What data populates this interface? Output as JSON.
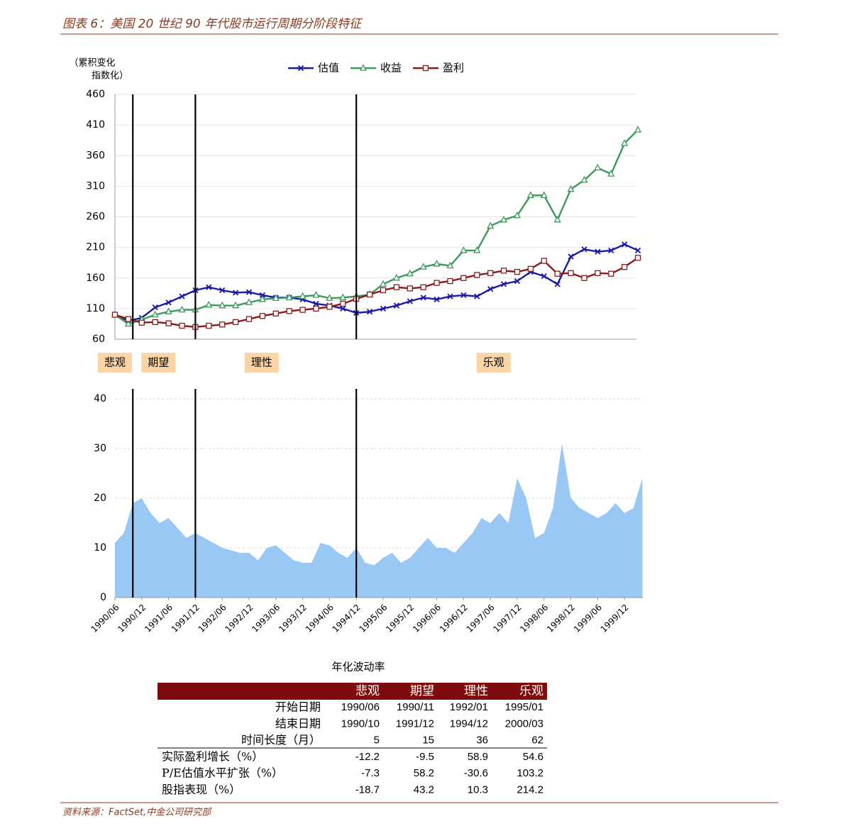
{
  "header": {
    "title": "图表 6：美国 20 世纪 90 年代股市运行周期分阶段特征"
  },
  "chart_data": [
    {
      "type": "line",
      "ylabel": [
        "（累积变化",
        "指数化）"
      ],
      "x": [
        "1990/06",
        "1990/09",
        "1990/12",
        "1991/03",
        "1991/06",
        "1991/09",
        "1991/12",
        "1992/03",
        "1992/06",
        "1992/09",
        "1992/12",
        "1993/03",
        "1993/06",
        "1993/09",
        "1993/12",
        "1994/03",
        "1994/06",
        "1994/09",
        "1994/12",
        "1995/03",
        "1995/06",
        "1995/09",
        "1995/12",
        "1996/03",
        "1996/06",
        "1996/09",
        "1996/12",
        "1997/03",
        "1997/06",
        "1997/09",
        "1997/12",
        "1998/03",
        "1998/06",
        "1998/09",
        "1998/12",
        "1999/03",
        "1999/06",
        "1999/09",
        "1999/12",
        "2000/03"
      ],
      "series": [
        {
          "name": "估值",
          "color": "#1a1aa8",
          "marker": "x",
          "values": [
            100,
            90,
            95,
            112,
            120,
            130,
            140,
            145,
            140,
            136,
            137,
            132,
            128,
            128,
            125,
            118,
            115,
            110,
            103,
            105,
            110,
            115,
            122,
            128,
            125,
            130,
            132,
            130,
            142,
            150,
            155,
            170,
            163,
            150,
            195,
            207,
            203,
            205,
            215,
            205
          ]
        },
        {
          "name": "收益",
          "color": "#3a9a5a",
          "marker": "triangle",
          "values": [
            100,
            85,
            92,
            100,
            105,
            108,
            108,
            116,
            115,
            115,
            120,
            125,
            127,
            128,
            130,
            132,
            127,
            128,
            130,
            133,
            150,
            160,
            167,
            178,
            183,
            180,
            205,
            205,
            245,
            255,
            262,
            295,
            295,
            255,
            305,
            320,
            340,
            330,
            380,
            402
          ]
        },
        {
          "name": "盈利",
          "color": "#8b1a1a",
          "marker": "square",
          "values": [
            100,
            93,
            87,
            88,
            86,
            82,
            80,
            82,
            84,
            88,
            93,
            98,
            102,
            106,
            108,
            110,
            113,
            118,
            126,
            133,
            140,
            145,
            143,
            145,
            152,
            155,
            160,
            165,
            168,
            172,
            170,
            175,
            188,
            167,
            168,
            160,
            168,
            167,
            178,
            193
          ]
        }
      ],
      "ylim": [
        60,
        460
      ],
      "yticks": [
        60,
        110,
        160,
        210,
        260,
        310,
        360,
        410,
        460
      ],
      "grid": true,
      "vlines": [
        "1990/10",
        "1991/12",
        "1994/12"
      ],
      "phases": [
        "悲观",
        "期望",
        "理性",
        "乐观"
      ]
    },
    {
      "type": "area",
      "xlabel": "年化波动率",
      "color": "#99c8f5",
      "x": [
        "1990/06",
        "1990/08",
        "1990/10",
        "1990/12",
        "1991/02",
        "1991/04",
        "1991/06",
        "1991/08",
        "1991/10",
        "1991/12",
        "1992/02",
        "1992/04",
        "1992/06",
        "1992/08",
        "1992/10",
        "1992/12",
        "1993/02",
        "1993/04",
        "1993/06",
        "1993/08",
        "1993/10",
        "1993/12",
        "1994/02",
        "1994/04",
        "1994/06",
        "1994/08",
        "1994/10",
        "1994/12",
        "1995/02",
        "1995/04",
        "1995/06",
        "1995/08",
        "1995/10",
        "1995/12",
        "1996/02",
        "1996/04",
        "1996/06",
        "1996/08",
        "1996/10",
        "1996/12",
        "1997/02",
        "1997/04",
        "1997/06",
        "1997/08",
        "1997/10",
        "1997/12",
        "1998/02",
        "1998/04",
        "1998/06",
        "1998/08",
        "1998/10",
        "1998/12",
        "1999/02",
        "1999/04",
        "1999/06",
        "1999/08",
        "1999/10",
        "1999/12",
        "2000/02",
        "2000/04"
      ],
      "values": [
        11,
        13,
        19,
        20,
        17,
        15,
        16,
        14,
        12,
        13,
        12,
        11,
        10,
        9.5,
        9,
        9,
        7.5,
        10,
        10.5,
        9,
        7.5,
        7,
        7,
        11,
        10.5,
        9,
        8,
        10,
        7,
        6.5,
        8,
        9,
        7,
        8,
        10,
        12,
        10,
        10,
        9,
        11,
        13,
        16,
        15,
        17,
        15,
        24,
        20,
        12,
        13,
        18,
        31,
        20,
        18,
        17,
        16,
        17,
        19,
        17,
        18,
        24
      ],
      "ylim": [
        0,
        40
      ],
      "yticks": [
        0,
        10,
        20,
        30,
        40
      ],
      "grid": true,
      "xticks": [
        "1990/06",
        "1990/12",
        "1991/06",
        "1991/12",
        "1992/06",
        "1992/12",
        "1993/06",
        "1993/12",
        "1994/06",
        "1994/12",
        "1995/06",
        "1995/12",
        "1996/06",
        "1996/12",
        "1997/06",
        "1997/12",
        "1998/06",
        "1998/12",
        "1999/06",
        "1999/12"
      ],
      "vlines": [
        "1990/10",
        "1991/12",
        "1994/12"
      ]
    }
  ],
  "table": {
    "columns": [
      "悲观",
      "期望",
      "理性",
      "乐观"
    ],
    "rows": [
      {
        "label": "开始日期",
        "values": [
          "1990/06",
          "1990/11",
          "1992/01",
          "1995/01"
        ]
      },
      {
        "label": "结束日期",
        "values": [
          "1990/10",
          "1991/12",
          "1994/12",
          "2000/03"
        ]
      },
      {
        "label": "时间长度（月）",
        "values": [
          5,
          15,
          36,
          62
        ]
      },
      {
        "label": "实际盈利增长（%）",
        "values": [
          -12.2,
          -9.5,
          58.9,
          54.6
        ]
      },
      {
        "label": "P/E估值水平扩张（%）",
        "values": [
          -7.3,
          58.2,
          -30.6,
          103.2
        ]
      },
      {
        "label": "股指表现（%）",
        "values": [
          -18.7,
          43.2,
          10.3,
          214.2
        ]
      }
    ]
  },
  "footer": {
    "source": "资料来源：FactSet,中金公司研究部"
  }
}
